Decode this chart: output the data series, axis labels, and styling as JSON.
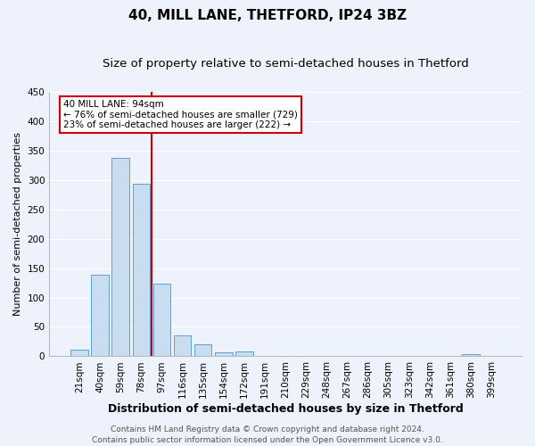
{
  "title": "40, MILL LANE, THETFORD, IP24 3BZ",
  "subtitle": "Size of property relative to semi-detached houses in Thetford",
  "xlabel": "Distribution of semi-detached houses by size in Thetford",
  "ylabel": "Number of semi-detached properties",
  "categories": [
    "21sqm",
    "40sqm",
    "59sqm",
    "78sqm",
    "97sqm",
    "116sqm",
    "135sqm",
    "154sqm",
    "172sqm",
    "191sqm",
    "210sqm",
    "229sqm",
    "248sqm",
    "267sqm",
    "286sqm",
    "305sqm",
    "323sqm",
    "342sqm",
    "361sqm",
    "380sqm",
    "399sqm"
  ],
  "values": [
    12,
    139,
    337,
    293,
    124,
    36,
    20,
    7,
    8,
    0,
    0,
    0,
    0,
    0,
    0,
    0,
    0,
    0,
    0,
    3,
    0
  ],
  "bar_color": "#c8ddf0",
  "bar_edge_color": "#5a9fd4",
  "vline_index": 3.5,
  "vline_color": "#cc0000",
  "vline_label": "40 MILL LANE: 94sqm",
  "annotation_smaller": "← 76% of semi-detached houses are smaller (729)",
  "annotation_larger": "23% of semi-detached houses are larger (222) →",
  "annotation_box_color": "#ffffff",
  "annotation_box_edge": "#cc0000",
  "ylim": [
    0,
    450
  ],
  "yticks": [
    0,
    50,
    100,
    150,
    200,
    250,
    300,
    350,
    400,
    450
  ],
  "background_color": "#eef2fc",
  "grid_color": "#ffffff",
  "footer_line1": "Contains HM Land Registry data © Crown copyright and database right 2024.",
  "footer_line2": "Contains public sector information licensed under the Open Government Licence v3.0.",
  "title_fontsize": 11,
  "subtitle_fontsize": 9.5,
  "xlabel_fontsize": 9,
  "ylabel_fontsize": 8,
  "tick_fontsize": 7.5,
  "footer_fontsize": 6.5
}
